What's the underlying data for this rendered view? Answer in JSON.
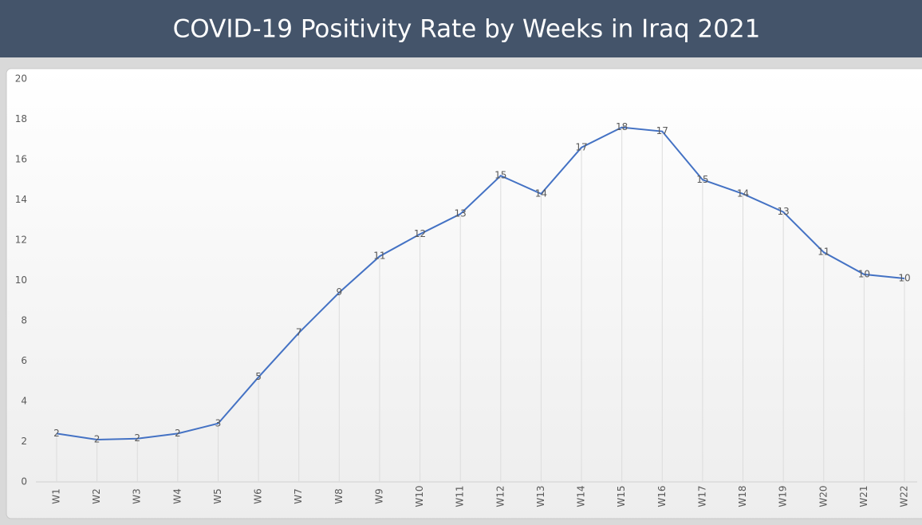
{
  "chart_data": {
    "type": "line",
    "title": "COVID-19 Positivity Rate by Weeks in Iraq 2021",
    "categories": [
      "W1",
      "W2",
      "W3",
      "W4",
      "W5",
      "W6",
      "W7",
      "W8",
      "W9",
      "W10",
      "W11",
      "W12",
      "W13",
      "W14",
      "W15",
      "W16",
      "W17",
      "W18",
      "W19",
      "W20",
      "W21",
      "W22"
    ],
    "values": [
      2.4,
      2.1,
      2.15,
      2.4,
      2.9,
      5.2,
      7.4,
      9.4,
      11.2,
      12.3,
      13.3,
      15.2,
      14.3,
      16.6,
      17.6,
      17.4,
      15.0,
      14.3,
      13.4,
      11.4,
      10.3,
      10.1
    ],
    "value_labels": [
      "2",
      "2",
      "2",
      "2",
      "3",
      "5",
      "7",
      "9",
      "11",
      "12",
      "13",
      "15",
      "14",
      "17",
      "18",
      "17",
      "15",
      "14",
      "13",
      "11",
      "10",
      "10"
    ],
    "color": "#4472c4",
    "ylim": [
      0,
      20
    ],
    "yticks": [
      0,
      2,
      4,
      6,
      8,
      10,
      12,
      14,
      16,
      18,
      20
    ],
    "grid": false
  }
}
